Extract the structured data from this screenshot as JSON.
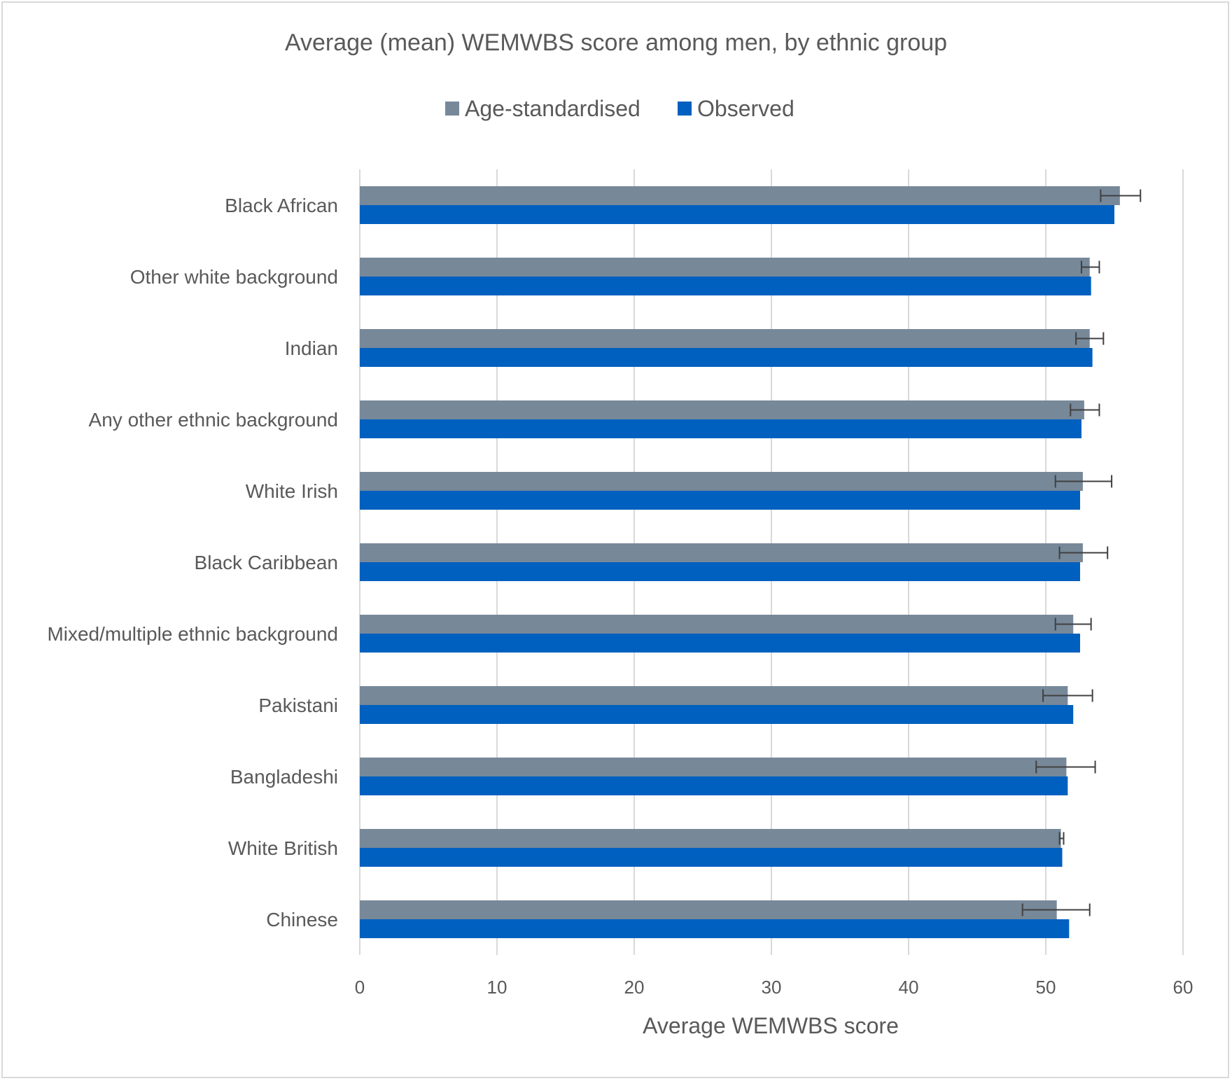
{
  "chart_data": {
    "type": "bar",
    "orientation": "horizontal",
    "title": "Average (mean) WEMWBS score among men, by ethnic group",
    "xlabel": "Average WEMWBS score",
    "ylabel": "",
    "xlim": [
      0,
      60
    ],
    "xticks": [
      0,
      10,
      20,
      30,
      40,
      50,
      60
    ],
    "grid": true,
    "legend_position": "top",
    "categories": [
      "Black African",
      "Other white background",
      "Indian",
      "Any other ethnic background",
      "White Irish",
      "Black Caribbean",
      "Mixed/multiple ethnic background",
      "Pakistani",
      "Bangladeshi",
      "White British",
      "Chinese"
    ],
    "series": [
      {
        "name": "Age-standardised",
        "color": "#778899",
        "values": [
          55.4,
          53.2,
          53.2,
          52.8,
          52.7,
          52.7,
          52.0,
          51.6,
          51.5,
          51.1,
          50.8
        ],
        "error_low": [
          54.0,
          52.6,
          52.2,
          51.8,
          50.7,
          51.0,
          50.7,
          49.8,
          49.3,
          51.0,
          48.3
        ],
        "error_high": [
          56.9,
          53.9,
          54.2,
          53.9,
          54.8,
          54.5,
          53.3,
          53.4,
          53.6,
          51.3,
          53.2
        ]
      },
      {
        "name": "Observed",
        "color": "#0060BF",
        "values": [
          55.0,
          53.3,
          53.4,
          52.6,
          52.5,
          52.5,
          52.5,
          52.0,
          51.6,
          51.2,
          51.7
        ]
      }
    ]
  }
}
